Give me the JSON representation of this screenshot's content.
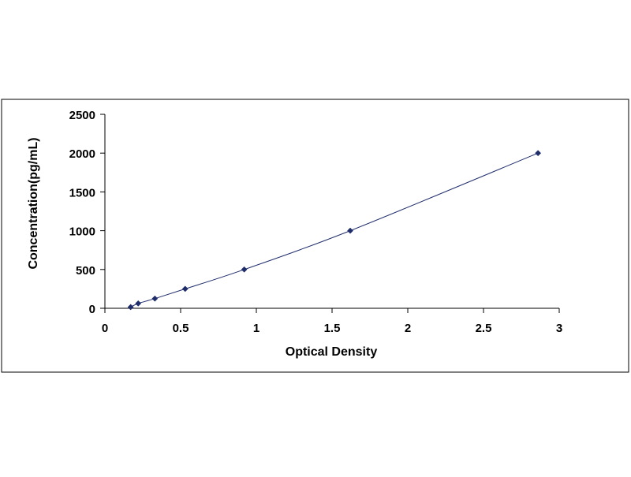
{
  "chart_data": {
    "type": "scatter",
    "title": "",
    "xlabel": "Optical Density",
    "ylabel": "Concentration(pg/mL)",
    "xlim": [
      0,
      3
    ],
    "ylim": [
      0,
      2500
    ],
    "x_ticks": [
      "0",
      "0.5",
      "1",
      "1.5",
      "2",
      "2.5",
      "3"
    ],
    "y_ticks": [
      "0",
      "500",
      "1000",
      "1500",
      "2000",
      "2500"
    ],
    "grid": false,
    "legend": "none",
    "trendline": "smooth curve through points",
    "series": [
      {
        "color": "#1f2d6b",
        "points": [
          {
            "x": 0.17,
            "y": 15.6
          },
          {
            "x": 0.22,
            "y": 62.5
          },
          {
            "x": 0.33,
            "y": 125
          },
          {
            "x": 0.53,
            "y": 250
          },
          {
            "x": 0.92,
            "y": 500
          },
          {
            "x": 1.62,
            "y": 1000
          },
          {
            "x": 2.86,
            "y": 2000
          }
        ]
      }
    ],
    "colors": {
      "marker": "#1f2d6b",
      "line": "#1f2d6b",
      "axis": "#000000",
      "border": "#000000"
    }
  }
}
